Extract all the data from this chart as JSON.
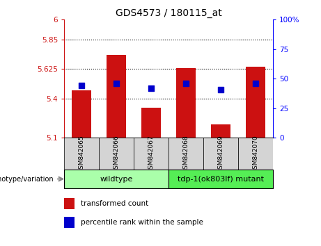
{
  "title": "GDS4573 / 180115_at",
  "samples": [
    "GSM842065",
    "GSM842066",
    "GSM842067",
    "GSM842068",
    "GSM842069",
    "GSM842070"
  ],
  "red_values": [
    5.46,
    5.73,
    5.33,
    5.63,
    5.2,
    5.64
  ],
  "blue_values_pct": [
    44,
    46,
    42,
    46,
    41,
    46
  ],
  "ylim_left": [
    5.1,
    6.0
  ],
  "ylim_right": [
    0,
    100
  ],
  "yticks_left": [
    5.1,
    5.4,
    5.625,
    5.85,
    6.0
  ],
  "ytick_labels_left": [
    "5.1",
    "5.4",
    "5.625",
    "5.85",
    "6"
  ],
  "yticks_right": [
    0,
    25,
    50,
    75,
    100
  ],
  "ytick_labels_right": [
    "0",
    "25",
    "50",
    "75",
    "100%"
  ],
  "hlines": [
    5.4,
    5.625,
    5.85
  ],
  "wildtype_label": "wildtype",
  "mutant_label": "tdp-1(ok803lf) mutant",
  "genotype_label": "genotype/variation",
  "legend_red": "transformed count",
  "legend_blue": "percentile rank within the sample",
  "bar_color": "#cc1111",
  "dot_color": "#0000cc",
  "bg_color_wildtype": "#aaffaa",
  "bg_color_mutant": "#55ee55",
  "bar_bottom": 5.1,
  "bar_width": 0.55,
  "dot_size": 28
}
